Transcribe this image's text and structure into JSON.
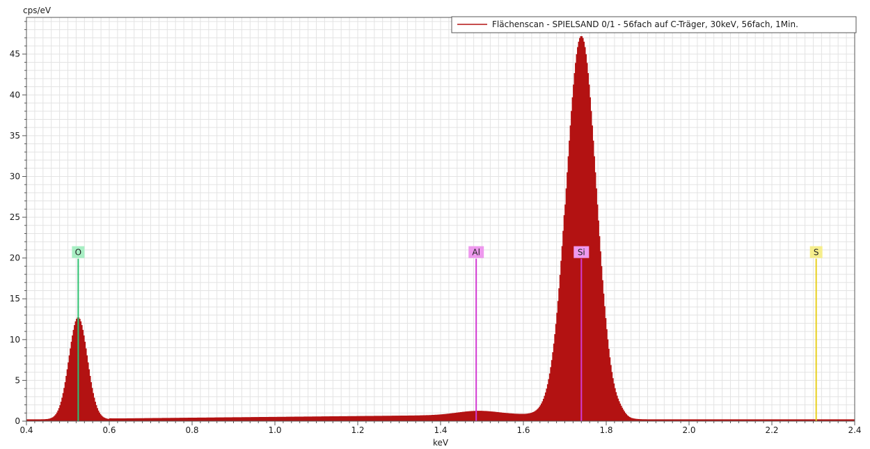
{
  "chart_data": {
    "type": "area",
    "title": "",
    "xlabel": "keV",
    "ylabel": "cps/eV",
    "xlim": [
      0.4,
      2.4
    ],
    "ylim": [
      0,
      49.5
    ],
    "x_ticks": [
      0.4,
      0.6,
      0.8,
      1.0,
      1.2,
      1.4,
      1.6,
      1.8,
      2.0,
      2.2,
      2.4
    ],
    "x_tick_labels": [
      "0.4",
      "0.6",
      "0.8",
      "1.0",
      "1.2",
      "1.4",
      "1.6",
      "1.8",
      "2.0",
      "2.2",
      "2.4"
    ],
    "y_ticks": [
      0,
      5,
      10,
      15,
      20,
      25,
      30,
      35,
      40,
      45
    ],
    "y_tick_labels": [
      "0",
      "5",
      "10",
      "15",
      "20",
      "25",
      "30",
      "35",
      "40",
      "45"
    ],
    "grid": true,
    "legend": {
      "position": "top-right",
      "entries": [
        {
          "name": "Flächenscan - SPIELSAND 0/1 - 56fach auf C-Träger, 30keV, 56fach, 1Min.",
          "color": "#b31212"
        }
      ]
    },
    "series": [
      {
        "name": "Flächenscan - SPIELSAND 0/1 - 56fach auf C-Träger, 30keV, 56fach, 1Min.",
        "color": "#b31212",
        "baseline": 0.2,
        "peaks": [
          {
            "center": 0.525,
            "height": 12.5,
            "sigma": 0.022
          },
          {
            "center": 1.49,
            "height": 0.5,
            "sigma": 0.05
          },
          {
            "center": 1.74,
            "height": 47.0,
            "sigma": 0.036
          },
          {
            "center": 1.835,
            "height": 0.35,
            "sigma": 0.01
          }
        ],
        "background": [
          {
            "from": 0.6,
            "to": 1.7,
            "start": 0.1,
            "end": 0.65
          }
        ]
      }
    ],
    "element_markers": [
      {
        "label": "O",
        "energy": 0.525,
        "height": 20,
        "color": "#2ec070",
        "label_bg": "#a8efc4"
      },
      {
        "label": "Al",
        "energy": 1.486,
        "height": 20,
        "color": "#d23ad2",
        "label_bg": "#ee99ee"
      },
      {
        "label": "Si",
        "energy": 1.74,
        "height": 20,
        "color": "#d23ad2",
        "label_bg": "#ee99ee"
      },
      {
        "label": "S",
        "energy": 2.307,
        "height": 20,
        "color": "#e8d020",
        "label_bg": "#f6ee8c"
      }
    ]
  }
}
